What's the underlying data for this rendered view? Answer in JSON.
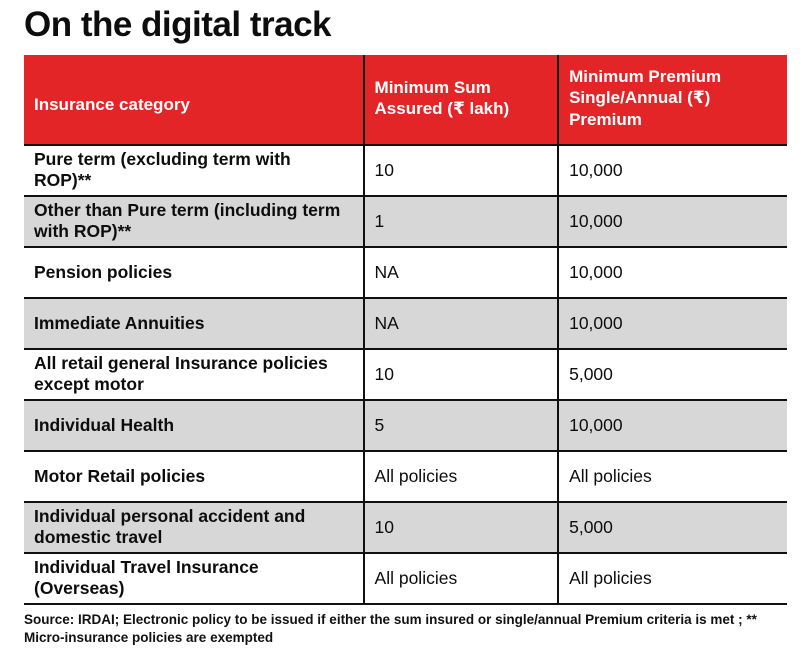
{
  "title": "On the digital track",
  "colors": {
    "header_bg": "#e42528",
    "header_text": "#ffffff",
    "row_bg": "#ffffff",
    "row_alt_bg": "#d7d7d7",
    "border": "#101010"
  },
  "table": {
    "columns": [
      "Insurance category",
      "Minimum Sum Assured (₹ lakh)",
      "Minimum Premium Single/Annual (₹) Premium"
    ],
    "rows": [
      [
        "Pure term (excluding term with ROP)**",
        "10",
        "10,000"
      ],
      [
        "Other than Pure term (including term with ROP)**",
        "1",
        "10,000"
      ],
      [
        "Pension policies",
        "NA",
        "10,000"
      ],
      [
        "Immediate Annuities",
        "NA",
        "10,000"
      ],
      [
        "All retail general Insurance policies except motor",
        "10",
        "5,000"
      ],
      [
        "Individual Health",
        "5",
        "10,000"
      ],
      [
        "Motor Retail policies",
        "All policies",
        "All policies"
      ],
      [
        "Individual personal accident and domestic travel",
        "10",
        "5,000"
      ],
      [
        "Individual Travel Insurance (Overseas)",
        "All policies",
        "All policies"
      ]
    ]
  },
  "footnote": "Source: IRDAI; Electronic policy to be issued if either the sum insured or single/annual Premium criteria is met ; ** Micro-insurance policies are exempted",
  "chart_data": {
    "type": "table",
    "title": "On the digital track",
    "columns": [
      "Insurance category",
      "Minimum Sum Assured (₹ lakh)",
      "Minimum Premium Single/Annual (₹) Premium"
    ],
    "rows": [
      [
        "Pure term (excluding term with ROP)**",
        "10",
        "10,000"
      ],
      [
        "Other than Pure term (including term with ROP)**",
        "1",
        "10,000"
      ],
      [
        "Pension policies",
        "NA",
        "10,000"
      ],
      [
        "Immediate Annuities",
        "NA",
        "10,000"
      ],
      [
        "All retail general Insurance policies except motor",
        "10",
        "5,000"
      ],
      [
        "Individual Health",
        "5",
        "10,000"
      ],
      [
        "Motor Retail policies",
        "All policies",
        "All policies"
      ],
      [
        "Individual personal accident and domestic travel",
        "10",
        "5,000"
      ],
      [
        "Individual Travel Insurance (Overseas)",
        "All policies",
        "All policies"
      ]
    ],
    "source": "Source: IRDAI; Electronic policy to be issued if either the sum insured or single/annual Premium criteria is met ; ** Micro-insurance policies are exempted"
  }
}
